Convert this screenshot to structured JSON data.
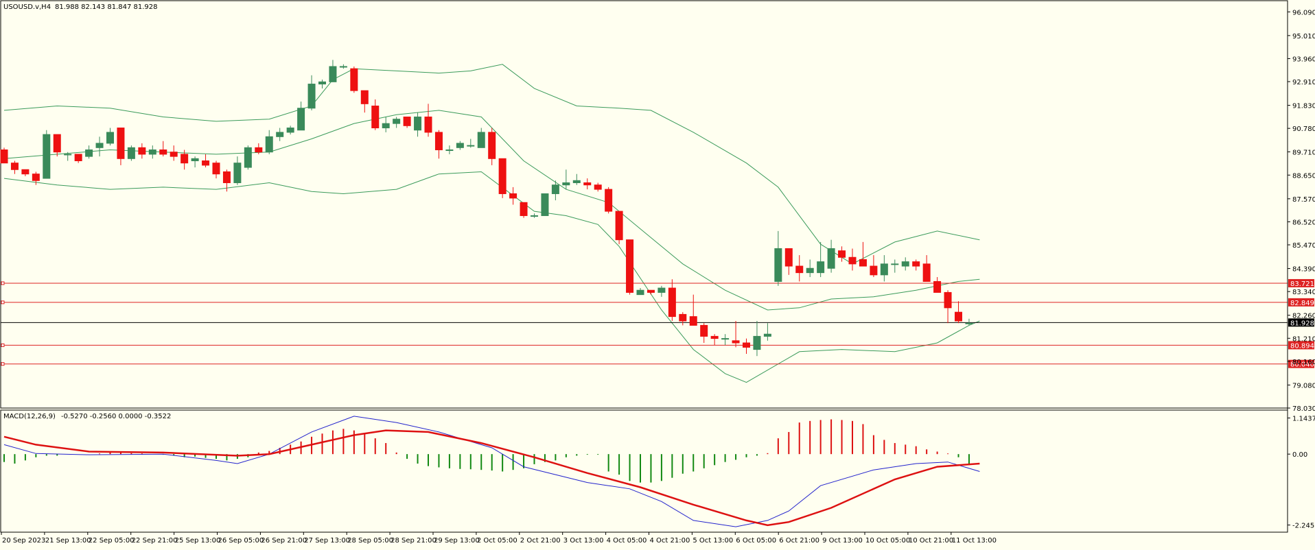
{
  "header": {
    "symbol_label": "USOUSD.v,H4",
    "ohlc_label": "81.988 82.143 81.847 81.928"
  },
  "macd_panel": {
    "label": "MACD(12,26,9)",
    "values_label": "-0.5270 -0.2560 0.0000 -0.3522"
  },
  "colors": {
    "background": "#fffff0",
    "bull_candle": "#3a8a5a",
    "bear_candle": "#ee1111",
    "bollinger": "#3a9a5a",
    "level_line": "#dd2222",
    "current_price_line": "#000000",
    "macd_line": "#2222cc",
    "signal_line": "#dd1111",
    "hist_pos": "#dd1111",
    "hist_neg": "#118811",
    "axis_text": "#000000"
  },
  "chart_data": {
    "type": "candlestick",
    "symbol": "USOUSD.v",
    "timeframe": "H4",
    "price_axis_ticks": [
      "96.090",
      "95.010",
      "93.960",
      "92.910",
      "91.830",
      "90.780",
      "89.710",
      "88.650",
      "87.570",
      "86.520",
      "85.470",
      "84.390",
      "83.340",
      "82.260",
      "81.210",
      "80.160",
      "79.080",
      "78.030"
    ],
    "price_range": [
      78.03,
      96.6
    ],
    "time_axis_labels": [
      "20 Sep 2023",
      "21 Sep 13:00",
      "22 Sep 05:00",
      "22 Sep 21:00",
      "25 Sep 13:00",
      "26 Sep 05:00",
      "26 Sep 21:00",
      "27 Sep 13:00",
      "28 Sep 05:00",
      "28 Sep 21:00",
      "29 Sep 13:00",
      "2 Oct 05:00",
      "2 Oct 21:00",
      "3 Oct 13:00",
      "4 Oct 05:00",
      "4 Oct 21:00",
      "5 Oct 13:00",
      "6 Oct 05:00",
      "6 Oct 21:00",
      "9 Oct 13:00",
      "10 Oct 05:00",
      "10 Oct 21:00",
      "11 Oct 13:00"
    ],
    "horizontal_levels": [
      {
        "price": 83.721,
        "label": "83.721"
      },
      {
        "price": 82.849,
        "label": "82.849"
      },
      {
        "price": 80.894,
        "label": "80.894"
      },
      {
        "price": 80.04,
        "label": "80.040"
      }
    ],
    "current_price": {
      "price": 81.928,
      "label": "81.928"
    },
    "candles_ohlc": [
      [
        89.8,
        89.9,
        89.2,
        89.2
      ],
      [
        89.2,
        89.3,
        88.7,
        88.9
      ],
      [
        88.9,
        88.9,
        88.6,
        88.7
      ],
      [
        88.7,
        88.8,
        88.2,
        88.4
      ],
      [
        88.5,
        90.7,
        88.5,
        90.5
      ],
      [
        90.5,
        90.5,
        89.5,
        89.7
      ],
      [
        89.6,
        89.7,
        89.3,
        89.6
      ],
      [
        89.6,
        89.6,
        89.2,
        89.3
      ],
      [
        89.5,
        90.0,
        89.4,
        89.8
      ],
      [
        89.9,
        90.4,
        89.5,
        90.1
      ],
      [
        90.1,
        90.8,
        90.0,
        90.6
      ],
      [
        90.8,
        90.8,
        89.1,
        89.4
      ],
      [
        89.4,
        90.0,
        89.3,
        89.9
      ],
      [
        89.9,
        90.1,
        89.4,
        89.6
      ],
      [
        89.6,
        90.0,
        89.4,
        89.8
      ],
      [
        89.8,
        90.2,
        89.5,
        89.6
      ],
      [
        89.7,
        90.0,
        89.3,
        89.5
      ],
      [
        89.6,
        89.8,
        88.9,
        89.2
      ],
      [
        89.3,
        89.5,
        89.0,
        89.4
      ],
      [
        89.3,
        89.6,
        89.0,
        89.1
      ],
      [
        89.2,
        89.3,
        88.5,
        88.7
      ],
      [
        88.8,
        88.9,
        87.9,
        88.3
      ],
      [
        88.3,
        89.5,
        88.2,
        89.2
      ],
      [
        89.0,
        90.0,
        88.9,
        89.9
      ],
      [
        89.9,
        90.1,
        89.6,
        89.7
      ],
      [
        89.7,
        90.7,
        89.6,
        90.4
      ],
      [
        90.4,
        90.8,
        90.2,
        90.6
      ],
      [
        90.6,
        90.9,
        90.5,
        90.8
      ],
      [
        90.7,
        92.0,
        90.7,
        91.7
      ],
      [
        91.7,
        93.2,
        91.6,
        92.8
      ],
      [
        92.8,
        93.0,
        92.6,
        92.9
      ],
      [
        92.9,
        93.9,
        92.9,
        93.6
      ],
      [
        93.6,
        93.7,
        93.5,
        93.6
      ],
      [
        93.5,
        93.6,
        92.4,
        92.5
      ],
      [
        92.5,
        92.5,
        91.5,
        91.9
      ],
      [
        91.8,
        92.1,
        90.7,
        90.8
      ],
      [
        90.8,
        91.3,
        90.6,
        91.0
      ],
      [
        91.0,
        91.3,
        90.8,
        91.2
      ],
      [
        91.3,
        91.3,
        90.8,
        90.9
      ],
      [
        90.7,
        91.5,
        90.4,
        91.3
      ],
      [
        91.3,
        91.9,
        90.4,
        90.6
      ],
      [
        90.6,
        90.7,
        89.4,
        89.8
      ],
      [
        89.8,
        90.0,
        89.6,
        89.8
      ],
      [
        89.9,
        90.2,
        89.8,
        90.1
      ],
      [
        90.0,
        90.3,
        89.9,
        90.0
      ],
      [
        89.9,
        90.8,
        89.9,
        90.6
      ],
      [
        90.6,
        90.8,
        89.1,
        89.4
      ],
      [
        89.4,
        89.4,
        87.6,
        87.8
      ],
      [
        87.8,
        88.1,
        87.3,
        87.6
      ],
      [
        87.4,
        87.4,
        86.7,
        86.8
      ],
      [
        86.8,
        86.9,
        86.7,
        86.8
      ],
      [
        86.8,
        87.8,
        86.8,
        87.8
      ],
      [
        87.8,
        88.4,
        87.5,
        88.2
      ],
      [
        88.2,
        88.9,
        88.0,
        88.3
      ],
      [
        88.3,
        88.7,
        88.2,
        88.4
      ],
      [
        88.3,
        88.5,
        88.0,
        88.2
      ],
      [
        88.2,
        88.3,
        87.9,
        88.0
      ],
      [
        88.0,
        88.1,
        86.9,
        87.0
      ],
      [
        87.0,
        87.0,
        85.5,
        85.7
      ],
      [
        85.7,
        85.7,
        83.2,
        83.3
      ],
      [
        83.2,
        83.5,
        83.2,
        83.4
      ],
      [
        83.4,
        83.4,
        83.2,
        83.3
      ],
      [
        83.3,
        83.6,
        83.1,
        83.5
      ],
      [
        83.5,
        83.9,
        82.0,
        82.2
      ],
      [
        82.3,
        82.4,
        81.8,
        82.0
      ],
      [
        82.2,
        83.2,
        81.8,
        81.8
      ],
      [
        81.8,
        81.9,
        81.0,
        81.3
      ],
      [
        81.3,
        81.4,
        80.9,
        81.2
      ],
      [
        81.2,
        81.4,
        80.9,
        81.2
      ],
      [
        81.1,
        82.0,
        80.8,
        81.0
      ],
      [
        81.0,
        81.2,
        80.5,
        80.8
      ],
      [
        80.7,
        82.0,
        80.4,
        81.3
      ],
      [
        81.3,
        81.9,
        81.1,
        81.4
      ],
      [
        83.8,
        86.1,
        83.6,
        85.3
      ],
      [
        85.3,
        85.3,
        84.1,
        84.5
      ],
      [
        84.5,
        85.0,
        83.8,
        84.2
      ],
      [
        84.2,
        84.8,
        84.0,
        84.4
      ],
      [
        84.2,
        85.6,
        84.0,
        84.7
      ],
      [
        84.4,
        85.7,
        84.2,
        85.3
      ],
      [
        85.2,
        85.4,
        84.7,
        84.9
      ],
      [
        84.9,
        85.3,
        84.3,
        84.6
      ],
      [
        84.8,
        85.6,
        84.6,
        84.5
      ],
      [
        84.5,
        85.0,
        84.0,
        84.1
      ],
      [
        84.1,
        85.0,
        83.8,
        84.6
      ],
      [
        84.6,
        84.8,
        84.2,
        84.6
      ],
      [
        84.5,
        84.9,
        84.3,
        84.7
      ],
      [
        84.7,
        84.8,
        84.3,
        84.5
      ],
      [
        84.6,
        85.0,
        83.8,
        83.8
      ],
      [
        83.8,
        84.0,
        83.3,
        83.3
      ],
      [
        83.3,
        83.4,
        81.9,
        82.6
      ],
      [
        82.4,
        82.9,
        81.9,
        82.0
      ],
      [
        81.9,
        82.1,
        81.8,
        81.9
      ]
    ],
    "bollinger_bands": {
      "upper": [
        [
          0,
          91.6
        ],
        [
          5,
          91.8
        ],
        [
          10,
          91.7
        ],
        [
          15,
          91.3
        ],
        [
          20,
          91.1
        ],
        [
          25,
          91.2
        ],
        [
          29,
          91.8
        ],
        [
          31,
          93.0
        ],
        [
          33,
          93.5
        ],
        [
          37,
          93.4
        ],
        [
          41,
          93.3
        ],
        [
          44,
          93.4
        ],
        [
          47,
          93.7
        ],
        [
          50,
          92.6
        ],
        [
          54,
          91.8
        ],
        [
          58,
          91.7
        ],
        [
          61,
          91.6
        ],
        [
          65,
          90.6
        ],
        [
          70,
          89.2
        ],
        [
          73,
          88.1
        ],
        [
          77,
          85.5
        ],
        [
          80,
          84.6
        ],
        [
          84,
          85.6
        ],
        [
          88,
          86.1
        ],
        [
          92,
          85.7
        ]
      ],
      "middle": [
        [
          0,
          89.4
        ],
        [
          5,
          89.6
        ],
        [
          10,
          89.8
        ],
        [
          15,
          89.7
        ],
        [
          20,
          89.6
        ],
        [
          25,
          89.7
        ],
        [
          29,
          90.3
        ],
        [
          33,
          91.0
        ],
        [
          37,
          91.4
        ],
        [
          41,
          91.6
        ],
        [
          45,
          91.3
        ],
        [
          49,
          89.3
        ],
        [
          53,
          88.0
        ],
        [
          57,
          87.4
        ],
        [
          60,
          86.2
        ],
        [
          64,
          84.6
        ],
        [
          68,
          83.4
        ],
        [
          72,
          82.5
        ],
        [
          75,
          82.6
        ],
        [
          78,
          83.0
        ],
        [
          82,
          83.1
        ],
        [
          86,
          83.4
        ],
        [
          90,
          83.8
        ],
        [
          92,
          83.9
        ]
      ],
      "lower": [
        [
          0,
          88.5
        ],
        [
          5,
          88.2
        ],
        [
          10,
          88.0
        ],
        [
          15,
          88.1
        ],
        [
          20,
          88.0
        ],
        [
          25,
          88.3
        ],
        [
          29,
          87.9
        ],
        [
          32,
          87.8
        ],
        [
          37,
          88.0
        ],
        [
          41,
          88.7
        ],
        [
          45,
          88.8
        ],
        [
          50,
          87.0
        ],
        [
          53,
          86.8
        ],
        [
          56,
          86.4
        ],
        [
          58,
          85.4
        ],
        [
          62,
          82.5
        ],
        [
          65,
          80.7
        ],
        [
          68,
          79.6
        ],
        [
          70,
          79.2
        ],
        [
          75,
          80.6
        ],
        [
          79,
          80.7
        ],
        [
          84,
          80.6
        ],
        [
          88,
          81.0
        ],
        [
          91,
          81.8
        ],
        [
          92,
          82.0
        ]
      ]
    },
    "macd": {
      "y_ticks": [
        "1.1437",
        "0.00",
        "-2.2455"
      ],
      "y_range": [
        -2.45,
        1.35
      ],
      "macd_line": [
        [
          0,
          0.3
        ],
        [
          3,
          0.02
        ],
        [
          8,
          -0.02
        ],
        [
          15,
          0.0
        ],
        [
          20,
          -0.2
        ],
        [
          22,
          -0.3
        ],
        [
          25,
          0.0
        ],
        [
          29,
          0.7
        ],
        [
          33,
          1.2
        ],
        [
          37,
          1.0
        ],
        [
          41,
          0.7
        ],
        [
          46,
          0.2
        ],
        [
          49,
          -0.4
        ],
        [
          55,
          -0.9
        ],
        [
          59,
          -1.1
        ],
        [
          62,
          -1.5
        ],
        [
          65,
          -2.1
        ],
        [
          69,
          -2.3
        ],
        [
          72,
          -2.1
        ],
        [
          74,
          -1.8
        ],
        [
          77,
          -1.0
        ],
        [
          82,
          -0.5
        ],
        [
          86,
          -0.3
        ],
        [
          89,
          -0.25
        ],
        [
          92,
          -0.55
        ]
      ],
      "signal_line": [
        [
          0,
          0.55
        ],
        [
          3,
          0.3
        ],
        [
          8,
          0.08
        ],
        [
          15,
          0.05
        ],
        [
          22,
          -0.05
        ],
        [
          25,
          0.0
        ],
        [
          29,
          0.3
        ],
        [
          33,
          0.6
        ],
        [
          36,
          0.75
        ],
        [
          40,
          0.7
        ],
        [
          45,
          0.35
        ],
        [
          50,
          -0.1
        ],
        [
          55,
          -0.6
        ],
        [
          60,
          -1.05
        ],
        [
          65,
          -1.6
        ],
        [
          70,
          -2.1
        ],
        [
          72,
          -2.25
        ],
        [
          74,
          -2.15
        ],
        [
          78,
          -1.7
        ],
        [
          84,
          -0.8
        ],
        [
          88,
          -0.4
        ],
        [
          92,
          -0.3
        ]
      ],
      "histogram": [
        -0.25,
        -0.3,
        -0.2,
        -0.1,
        -0.05,
        -0.05,
        0,
        0,
        0,
        0.02,
        0.05,
        0.05,
        0.03,
        0.02,
        0,
        -0.02,
        -0.05,
        -0.1,
        -0.08,
        -0.12,
        -0.15,
        -0.2,
        -0.15,
        -0.1,
        0.05,
        0.1,
        0.2,
        0.3,
        0.4,
        0.55,
        0.65,
        0.75,
        0.8,
        0.75,
        0.65,
        0.5,
        0.35,
        0.05,
        -0.15,
        -0.3,
        -0.38,
        -0.42,
        -0.45,
        -0.47,
        -0.48,
        -0.5,
        -0.52,
        -0.55,
        -0.5,
        -0.45,
        -0.32,
        -0.25,
        -0.2,
        -0.1,
        -0.05,
        -0.02,
        -0.02,
        -0.55,
        -0.65,
        -0.85,
        -0.9,
        -0.9,
        -0.85,
        -0.75,
        -0.62,
        -0.55,
        -0.45,
        -0.35,
        -0.25,
        -0.18,
        -0.1,
        -0.05,
        0.03,
        0.5,
        0.7,
        1.0,
        1.05,
        1.08,
        1.1,
        1.08,
        1.05,
        0.95,
        0.6,
        0.45,
        0.35,
        0.3,
        0.25,
        0.15,
        0.08,
        0.02,
        -0.1,
        -0.35
      ]
    }
  }
}
